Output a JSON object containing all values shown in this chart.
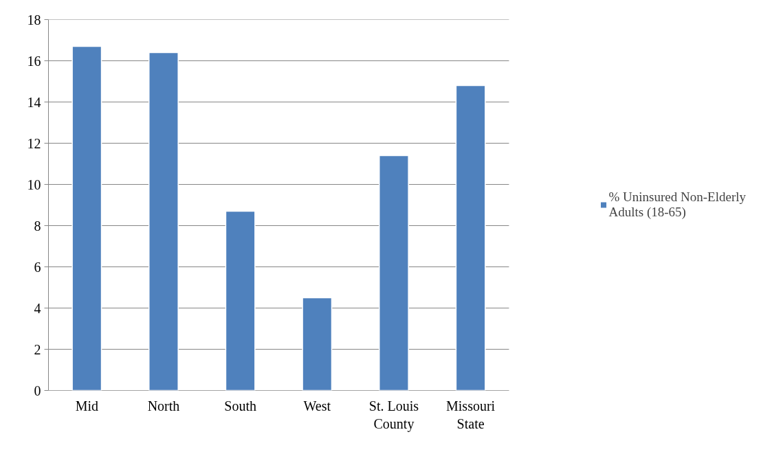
{
  "chart_data": {
    "type": "bar",
    "categories": [
      "Mid",
      "North",
      "South",
      "West",
      "St. Louis\nCounty",
      "Missouri\nState"
    ],
    "series": [
      {
        "name": "% Uninsured Non-Elderly Adults (18-65)",
        "color": "#4f81bd",
        "values": [
          16.7,
          16.4,
          8.7,
          4.5,
          11.4,
          14.8
        ]
      }
    ],
    "ylim": [
      0,
      18
    ],
    "yticks": [
      0,
      2,
      4,
      6,
      8,
      10,
      12,
      14,
      16,
      18
    ],
    "grid": "y",
    "legend": "right"
  }
}
